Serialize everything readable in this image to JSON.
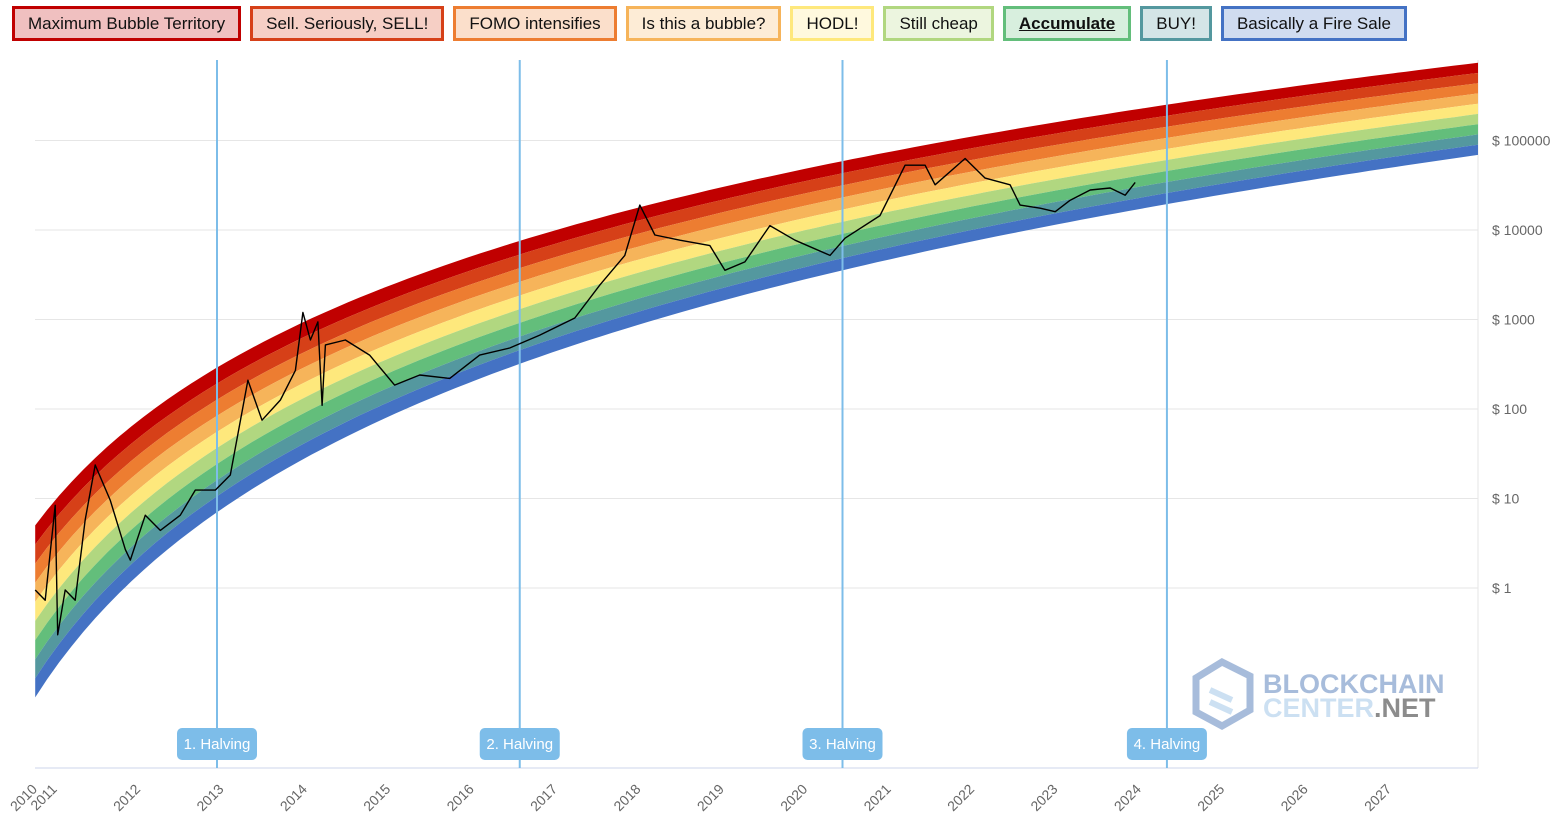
{
  "legend": [
    {
      "label": "Maximum Bubble Territory",
      "color": "#c00000",
      "bg": "#f0c0c0"
    },
    {
      "label": "Sell. Seriously, SELL!",
      "color": "#d64018",
      "bg": "#f6cfc5"
    },
    {
      "label": "FOMO intensifies",
      "color": "#ed7d31",
      "bg": "#fbdfcb"
    },
    {
      "label": "Is this a bubble?",
      "color": "#f6b45a",
      "bg": "#fdecd6"
    },
    {
      "label": "HODL!",
      "color": "#fee87c",
      "bg": "#fff9de"
    },
    {
      "label": "Still cheap",
      "color": "#b1d780",
      "bg": "#ecf5df"
    },
    {
      "label": "Accumulate",
      "color": "#63be7b",
      "bg": "#d8efde",
      "active": true
    },
    {
      "label": "BUY!",
      "color": "#54989f",
      "bg": "#d4e5e7"
    },
    {
      "label": "Basically a Fire Sale",
      "color": "#4472c4",
      "bg": "#d0dcf0"
    }
  ],
  "watermark": "BLOCKCHAIN CENTER.NET",
  "chart_data": {
    "type": "line",
    "title": "",
    "y_scale": "log",
    "ylim": [
      0.01,
      800000
    ],
    "xlim": [
      2010.73,
      2028.03
    ],
    "grid": true,
    "y_ticks": [
      {
        "v": 1,
        "label": "$ 1"
      },
      {
        "v": 10,
        "label": "$ 10"
      },
      {
        "v": 100,
        "label": "$ 100"
      },
      {
        "v": 1000,
        "label": "$ 1000"
      },
      {
        "v": 10000,
        "label": "$ 10000"
      },
      {
        "v": 100000,
        "label": "$ 100000"
      }
    ],
    "x_ticks": [
      "2010",
      "2011",
      "2012",
      "2013",
      "2014",
      "2015",
      "2016",
      "2017",
      "2018",
      "2019",
      "2020",
      "2021",
      "2022",
      "2023",
      "2024",
      "2025",
      "2026",
      "2027"
    ],
    "halvings": [
      {
        "t": 2012.91,
        "label": "1. Halving"
      },
      {
        "t": 2016.54,
        "label": "2. Halving"
      },
      {
        "t": 2020.41,
        "label": "3. Halving"
      },
      {
        "t": 2024.3,
        "label": "4. Halving"
      }
    ],
    "halving_color": "#7dbde9",
    "price_color": "#000000",
    "price": [
      [
        2010.73,
        0.95
      ],
      [
        2010.85,
        0.73
      ],
      [
        2010.97,
        8.4
      ],
      [
        2011.0,
        0.3
      ],
      [
        2011.09,
        0.95
      ],
      [
        2011.21,
        0.73
      ],
      [
        2011.33,
        5.8
      ],
      [
        2011.45,
        23.7
      ],
      [
        2011.63,
        9.6
      ],
      [
        2011.81,
        2.7
      ],
      [
        2011.87,
        2.05
      ],
      [
        2012.05,
        6.5
      ],
      [
        2012.23,
        4.4
      ],
      [
        2012.47,
        6.5
      ],
      [
        2012.65,
        12.4
      ],
      [
        2012.89,
        12.4
      ],
      [
        2013.07,
        18.3
      ],
      [
        2013.28,
        210
      ],
      [
        2013.45,
        75
      ],
      [
        2013.67,
        126
      ],
      [
        2013.85,
        270
      ],
      [
        2013.94,
        1200
      ],
      [
        2014.03,
        590
      ],
      [
        2014.12,
        940
      ],
      [
        2014.17,
        110
      ],
      [
        2014.21,
        520
      ],
      [
        2014.45,
        590
      ],
      [
        2014.74,
        400
      ],
      [
        2015.04,
        185
      ],
      [
        2015.34,
        240
      ],
      [
        2015.7,
        220
      ],
      [
        2016.06,
        400
      ],
      [
        2016.42,
        480
      ],
      [
        2016.78,
        670
      ],
      [
        2017.2,
        1040
      ],
      [
        2017.5,
        2420
      ],
      [
        2017.8,
        5200
      ],
      [
        2017.98,
        19000
      ],
      [
        2018.16,
        8800
      ],
      [
        2018.46,
        7700
      ],
      [
        2018.82,
        6700
      ],
      [
        2019.0,
        3550
      ],
      [
        2019.24,
        4400
      ],
      [
        2019.54,
        11200
      ],
      [
        2019.84,
        7700
      ],
      [
        2020.26,
        5200
      ],
      [
        2020.44,
        8100
      ],
      [
        2020.86,
        14500
      ],
      [
        2021.16,
        53000
      ],
      [
        2021.4,
        53000
      ],
      [
        2021.52,
        32000
      ],
      [
        2021.88,
        63000
      ],
      [
        2022.12,
        38000
      ],
      [
        2022.42,
        32000
      ],
      [
        2022.54,
        19000
      ],
      [
        2022.78,
        17500
      ],
      [
        2022.96,
        16000
      ],
      [
        2023.14,
        21500
      ],
      [
        2023.38,
        28000
      ],
      [
        2023.62,
        29500
      ],
      [
        2023.8,
        24500
      ],
      [
        2023.92,
        34000
      ]
    ],
    "bands": {
      "lower_at_start": 0.06,
      "lower_at_end": 69000,
      "upper_at_start": 5,
      "upper_at_end": 740000
    }
  }
}
